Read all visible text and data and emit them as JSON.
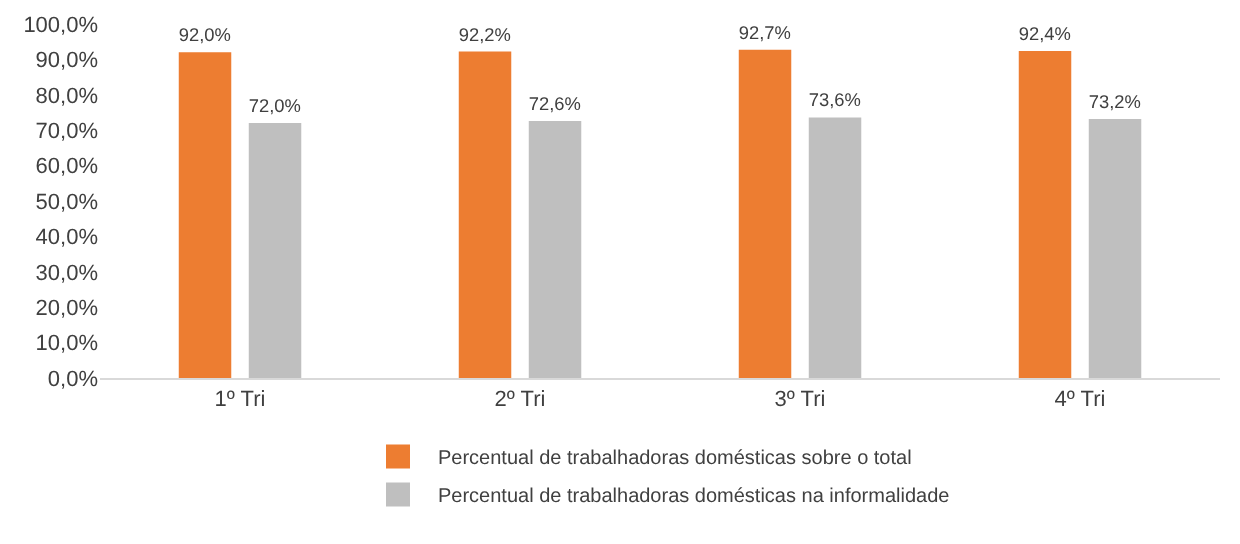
{
  "chart_data": {
    "type": "bar",
    "categories": [
      "1º Tri",
      "2º Tri",
      "3º Tri",
      "4º Tri"
    ],
    "series": [
      {
        "name": "Percentual de trabalhadoras domésticas sobre o total",
        "color": "#ed7d31",
        "values": [
          92.0,
          92.2,
          92.7,
          92.4
        ],
        "value_labels": [
          "92,0%",
          "92,2%",
          "92,7%",
          "92,4%"
        ]
      },
      {
        "name": "Percentual de trabalhadoras domésticas na informalidade",
        "color": "#bfbfbf",
        "values": [
          72.0,
          72.6,
          73.6,
          73.2
        ],
        "value_labels": [
          "72,0%",
          "72,6%",
          "73,6%",
          "73,2%"
        ]
      }
    ],
    "ylim": [
      0,
      100
    ],
    "yticks": [
      {
        "value": 0,
        "label": "0,0%"
      },
      {
        "value": 10,
        "label": "10,0%"
      },
      {
        "value": 20,
        "label": "20,0%"
      },
      {
        "value": 30,
        "label": "30,0%"
      },
      {
        "value": 40,
        "label": "40,0%"
      },
      {
        "value": 50,
        "label": "50,0%"
      },
      {
        "value": 60,
        "label": "60,0%"
      },
      {
        "value": 70,
        "label": "70,0%"
      },
      {
        "value": 80,
        "label": "80,0%"
      },
      {
        "value": 90,
        "label": "90,0%"
      },
      {
        "value": 100,
        "label": "100,0%"
      }
    ],
    "grid": false,
    "legend": "bottom"
  }
}
